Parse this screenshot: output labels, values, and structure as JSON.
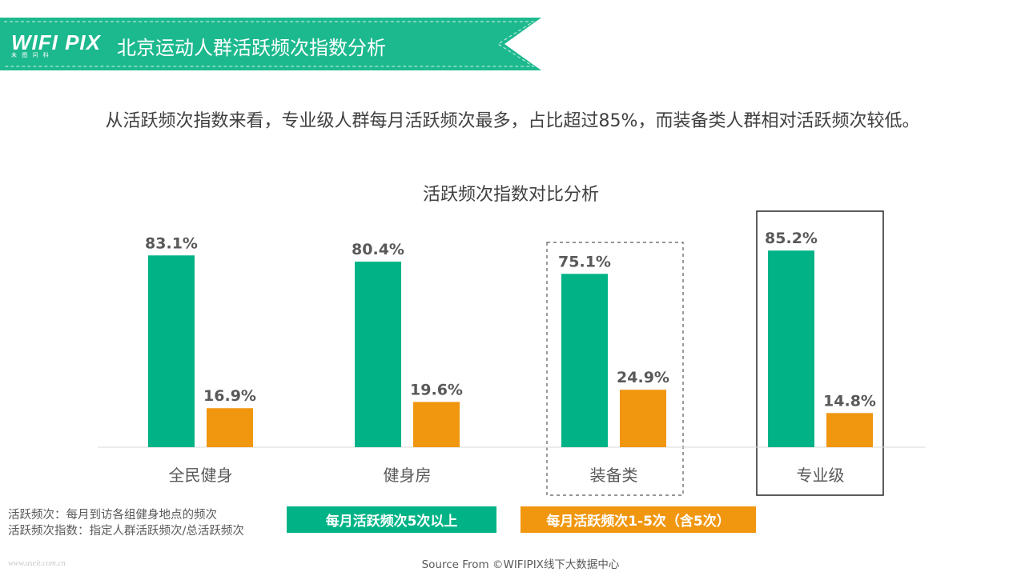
{
  "header": {
    "logo_text": "WIFI PIX",
    "logo_subtext": "未 图 问 科",
    "title": "北京运动人群活跃频次指数分析"
  },
  "subtitle": "从活跃频次指数来看，专业级人群每月活跃频次最多，占比超过85%，而装备类人群相对活跃频次较低。",
  "chart_data": {
    "type": "bar",
    "title": "活跃频次指数对比分析",
    "categories": [
      "全民健身",
      "健身房",
      "装备类",
      "专业级"
    ],
    "series": [
      {
        "name": "每月活跃频次5次以上",
        "values": [
          83.1,
          80.4,
          75.1,
          85.2
        ],
        "color": "#00b386"
      },
      {
        "name": "每月活跃频次1-5次（含5次）",
        "values": [
          16.9,
          19.6,
          24.9,
          14.8
        ],
        "color": "#f0960f"
      }
    ],
    "value_labels": [
      [
        "83.1%",
        "80.4%",
        "75.1%",
        "85.2%"
      ],
      [
        "16.9%",
        "19.6%",
        "24.9%",
        "14.8%"
      ]
    ],
    "ylim": [
      0,
      100
    ],
    "grid": false,
    "legend_position": "bottom",
    "highlight": {
      "dashed_box": "装备类",
      "solid_box": "专业级"
    }
  },
  "notes": [
    "活跃频次：每月到访各组健身地点的频次",
    "活跃频次指数：指定人群活跃频次/总活跃频次"
  ],
  "source": "Source From ©WIFIPIX线下大数据中心",
  "watermark": "www.useit.com.cn",
  "colors": {
    "brand": "#1db98e",
    "accent_orange": "#f0960f"
  }
}
